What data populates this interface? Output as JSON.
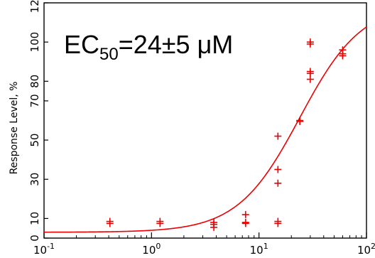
{
  "chart_data": {
    "type": "scatter",
    "x_scale": "log",
    "xlim": [
      0.1,
      100
    ],
    "ylim": [
      0,
      120
    ],
    "ylabel": "Response Level, %",
    "x_ticks": [
      {
        "value": 0.1,
        "base": "10",
        "exp": "-1"
      },
      {
        "value": 1,
        "base": "10",
        "exp": "0"
      },
      {
        "value": 10,
        "base": "10",
        "exp": "1"
      },
      {
        "value": 100,
        "base": "10",
        "exp": "2"
      }
    ],
    "y_ticks": [
      {
        "value": 0,
        "label": "0"
      },
      {
        "value": 10,
        "label": "10"
      },
      {
        "value": 30,
        "label": "30"
      },
      {
        "value": 50,
        "label": "50"
      },
      {
        "value": 70,
        "label": "70"
      },
      {
        "value": 80,
        "label": "80"
      },
      {
        "value": 100,
        "label": "100"
      },
      {
        "value": 120,
        "label": "120"
      }
    ],
    "annotation": {
      "prefix": "EC",
      "subscript": "50",
      "suffix": "=24±5 μM"
    },
    "color": "#ee0000",
    "series": [
      {
        "kind": "points",
        "points": [
          [
            0.41,
            8.5
          ],
          [
            0.41,
            7.5
          ],
          [
            1.2,
            8.5
          ],
          [
            1.2,
            7.5
          ],
          [
            3.8,
            8.0
          ],
          [
            3.8,
            7.0
          ],
          [
            3.8,
            5.5
          ],
          [
            7.5,
            12.0
          ],
          [
            7.5,
            8.0
          ],
          [
            7.5,
            7.5
          ],
          [
            15,
            52
          ],
          [
            15,
            35
          ],
          [
            15,
            28
          ],
          [
            15,
            8.5
          ],
          [
            15,
            7.5
          ],
          [
            24,
            60
          ],
          [
            24,
            59.5
          ],
          [
            30,
            100
          ],
          [
            30,
            99
          ],
          [
            30,
            85
          ],
          [
            30,
            84
          ],
          [
            30,
            81
          ],
          [
            60,
            96
          ],
          [
            60,
            94
          ],
          [
            60,
            93
          ]
        ]
      },
      {
        "kind": "fit",
        "bottom": 3,
        "top": 120,
        "ec50": 24,
        "hill": 1.5
      }
    ]
  }
}
